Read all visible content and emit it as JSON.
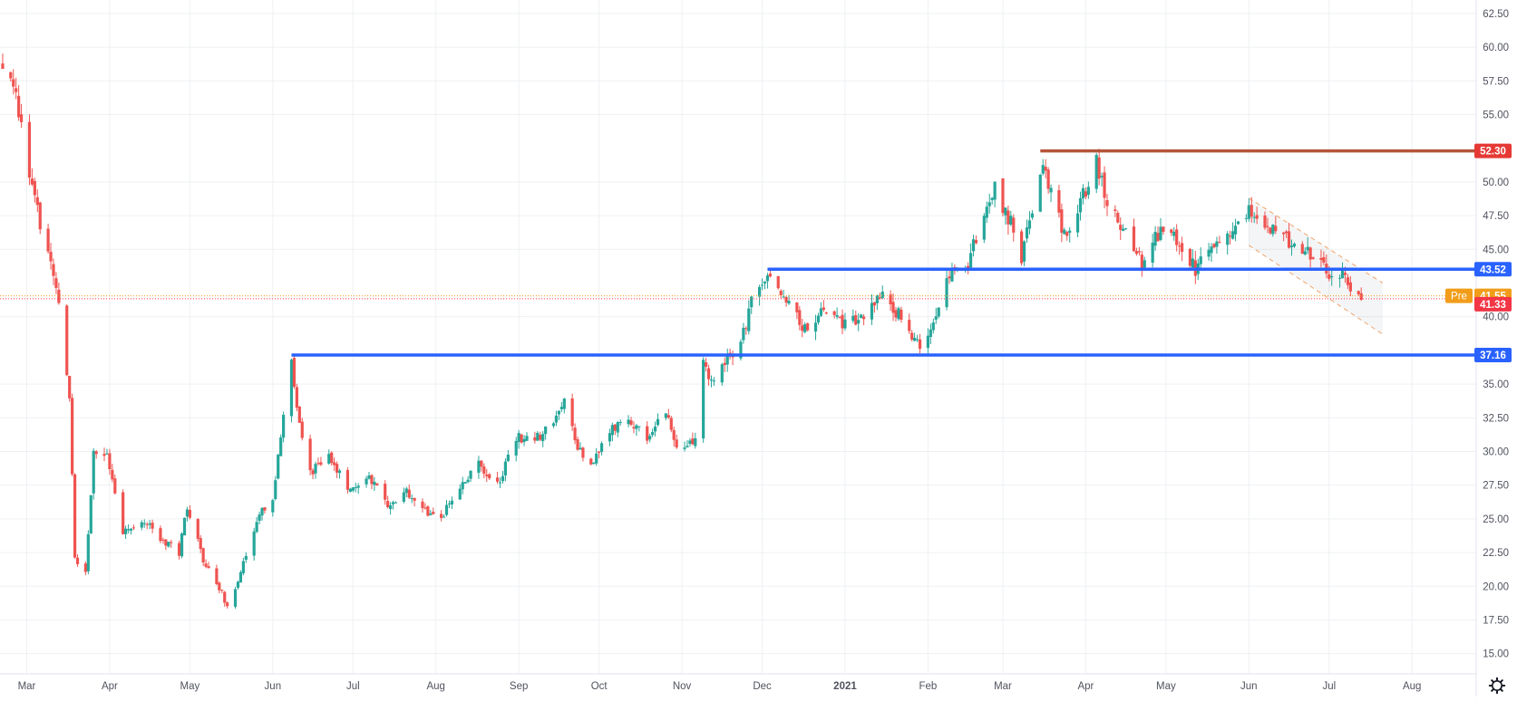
{
  "colors": {
    "up": "#26a69a",
    "down": "#ef5350",
    "resistance": "#b5553a",
    "support": "#2962ff",
    "premarket": "#f29d1a",
    "last": "#f23645",
    "channel": "#f0a46a",
    "grid": "#eef0f3"
  },
  "chart_data": {
    "type": "candlestick",
    "ylim": [
      13.5,
      63.5
    ],
    "y_ticks": [
      {
        "value": 62.5,
        "label": "62.50"
      },
      {
        "value": 60,
        "label": "60.00"
      },
      {
        "value": 57.5,
        "label": "57.50"
      },
      {
        "value": 55,
        "label": "55.00"
      },
      {
        "value": 50,
        "label": "50.00"
      },
      {
        "value": 47.5,
        "label": "47.50"
      },
      {
        "value": 45,
        "label": "45.00"
      },
      {
        "value": 40,
        "label": "40.00"
      },
      {
        "value": 35,
        "label": "35.00"
      },
      {
        "value": 32.5,
        "label": "32.50"
      },
      {
        "value": 30,
        "label": "30.00"
      },
      {
        "value": 27.5,
        "label": "27.50"
      },
      {
        "value": 25,
        "label": "25.00"
      },
      {
        "value": 22.5,
        "label": "22.50"
      },
      {
        "value": 20,
        "label": "20.00"
      },
      {
        "value": 17.5,
        "label": "17.50"
      },
      {
        "value": 15,
        "label": "15.00"
      }
    ],
    "x_ticks": [
      {
        "value": "2020-03-01",
        "label": "Mar"
      },
      {
        "value": "2020-04-01",
        "label": "Apr"
      },
      {
        "value": "2020-05-01",
        "label": "May"
      },
      {
        "value": "2020-06-01",
        "label": "Jun"
      },
      {
        "value": "2020-07-01",
        "label": "Jul"
      },
      {
        "value": "2020-08-01",
        "label": "Aug"
      },
      {
        "value": "2020-09-01",
        "label": "Sep"
      },
      {
        "value": "2020-10-01",
        "label": "Oct"
      },
      {
        "value": "2020-11-01",
        "label": "Nov"
      },
      {
        "value": "2020-12-01",
        "label": "Dec"
      },
      {
        "value": "2021-01-01",
        "label": "2021"
      },
      {
        "value": "2021-02-01",
        "label": "Feb"
      },
      {
        "value": "2021-03-01",
        "label": "Mar"
      },
      {
        "value": "2021-04-01",
        "label": "Apr"
      },
      {
        "value": "2021-05-01",
        "label": "May"
      },
      {
        "value": "2021-06-01",
        "label": "Jun"
      },
      {
        "value": "2021-07-01",
        "label": "Jul"
      },
      {
        "value": "2021-08-01",
        "label": "Aug"
      }
    ],
    "x_range": [
      "2020-02-20",
      "2021-08-25"
    ],
    "anchors": [
      [
        "2020-02-21",
        58.8
      ],
      [
        "2020-02-26",
        56.0
      ],
      [
        "2020-03-02",
        50.5
      ],
      [
        "2020-03-06",
        47.0
      ],
      [
        "2020-03-10",
        44.5
      ],
      [
        "2020-03-13",
        41.5
      ],
      [
        "2020-03-17",
        34.0
      ],
      [
        "2020-03-19",
        22.0
      ],
      [
        "2020-03-23",
        21.0
      ],
      [
        "2020-03-26",
        30.0
      ],
      [
        "2020-03-31",
        30.0
      ],
      [
        "2020-04-06",
        24.0
      ],
      [
        "2020-04-13",
        25.0
      ],
      [
        "2020-04-20",
        23.5
      ],
      [
        "2020-04-27",
        22.5
      ],
      [
        "2020-04-30",
        26.0
      ],
      [
        "2020-05-06",
        22.0
      ],
      [
        "2020-05-13",
        19.5
      ],
      [
        "2020-05-15",
        18.5
      ],
      [
        "2020-05-20",
        21.0
      ],
      [
        "2020-05-26",
        25.0
      ],
      [
        "2020-06-01",
        26.5
      ],
      [
        "2020-06-05",
        33.0
      ],
      [
        "2020-06-08",
        36.5
      ],
      [
        "2020-06-10",
        33.0
      ],
      [
        "2020-06-15",
        28.5
      ],
      [
        "2020-06-22",
        29.5
      ],
      [
        "2020-06-29",
        27.5
      ],
      [
        "2020-07-07",
        28.0
      ],
      [
        "2020-07-14",
        26.0
      ],
      [
        "2020-07-21",
        27.0
      ],
      [
        "2020-07-28",
        25.5
      ],
      [
        "2020-08-03",
        25.0
      ],
      [
        "2020-08-10",
        27.5
      ],
      [
        "2020-08-17",
        29.0
      ],
      [
        "2020-08-24",
        27.5
      ],
      [
        "2020-08-31",
        31.0
      ],
      [
        "2020-09-08",
        31.0
      ],
      [
        "2020-09-15",
        32.5
      ],
      [
        "2020-09-18",
        34.0
      ],
      [
        "2020-09-23",
        30.5
      ],
      [
        "2020-09-28",
        29.0
      ],
      [
        "2020-10-05",
        31.5
      ],
      [
        "2020-10-12",
        32.5
      ],
      [
        "2020-10-19",
        31.0
      ],
      [
        "2020-10-26",
        33.0
      ],
      [
        "2020-10-30",
        30.0
      ],
      [
        "2020-11-06",
        31.0
      ],
      [
        "2020-11-09",
        37.0
      ],
      [
        "2020-11-12",
        35.0
      ],
      [
        "2020-11-16",
        36.5
      ],
      [
        "2020-11-23",
        38.0
      ],
      [
        "2020-11-27",
        41.0
      ],
      [
        "2020-12-03",
        43.0
      ],
      [
        "2020-12-10",
        41.0
      ],
      [
        "2020-12-17",
        39.0
      ],
      [
        "2020-12-24",
        40.5
      ],
      [
        "2020-12-31",
        39.5
      ],
      [
        "2021-01-08",
        40.0
      ],
      [
        "2021-01-15",
        41.5
      ],
      [
        "2021-01-22",
        40.0
      ],
      [
        "2021-01-29",
        37.5
      ],
      [
        "2021-02-05",
        41.0
      ],
      [
        "2021-02-10",
        43.5
      ],
      [
        "2021-02-16",
        44.0
      ],
      [
        "2021-02-22",
        48.0
      ],
      [
        "2021-02-26",
        49.5
      ],
      [
        "2021-03-04",
        47.0
      ],
      [
        "2021-03-08",
        44.5
      ],
      [
        "2021-03-12",
        48.0
      ],
      [
        "2021-03-16",
        51.0
      ],
      [
        "2021-03-19",
        49.0
      ],
      [
        "2021-03-25",
        45.5
      ],
      [
        "2021-03-31",
        49.0
      ],
      [
        "2021-04-05",
        51.5
      ],
      [
        "2021-04-09",
        48.5
      ],
      [
        "2021-04-16",
        46.0
      ],
      [
        "2021-04-22",
        44.0
      ],
      [
        "2021-04-29",
        46.5
      ],
      [
        "2021-05-06",
        45.5
      ],
      [
        "2021-05-12",
        43.5
      ],
      [
        "2021-05-18",
        45.0
      ],
      [
        "2021-05-25",
        46.0
      ],
      [
        "2021-06-01",
        48.0
      ],
      [
        "2021-06-08",
        46.5
      ],
      [
        "2021-06-15",
        45.8
      ],
      [
        "2021-06-22",
        45.0
      ],
      [
        "2021-06-29",
        44.0
      ],
      [
        "2021-07-02",
        42.5
      ],
      [
        "2021-07-06",
        43.0
      ],
      [
        "2021-07-09",
        42.0
      ],
      [
        "2021-07-13",
        41.3
      ]
    ],
    "levels": [
      {
        "value": 52.3,
        "label": "52.30",
        "kind": "resistance",
        "from": "2021-03-15"
      },
      {
        "value": 43.52,
        "label": "43.52",
        "kind": "support",
        "from": "2020-12-03"
      },
      {
        "value": 37.16,
        "label": "37.16",
        "kind": "support",
        "from": "2020-06-08"
      }
    ],
    "channel": {
      "upper": [
        [
          "2021-06-01",
          48.8
        ],
        [
          "2021-07-21",
          42.5
        ]
      ],
      "lower": [
        [
          "2021-06-01",
          45.3
        ],
        [
          "2021-07-21",
          38.7
        ]
      ]
    },
    "price_tags": {
      "premarket_label": "Pre",
      "premarket_value": "41.55",
      "last_value": "41.33",
      "premarket_price": 41.55,
      "last_price": 41.33
    }
  }
}
